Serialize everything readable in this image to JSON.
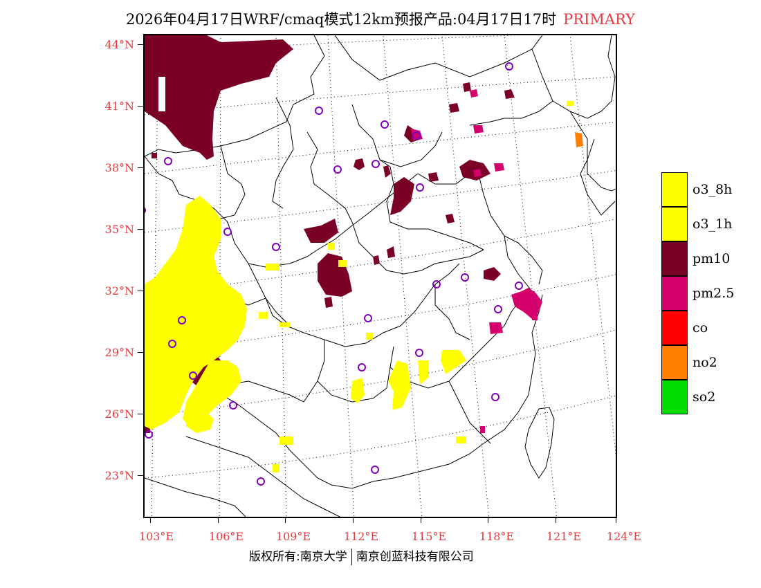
{
  "title": {
    "main": "2026年04月17日WRF/cmaq模式12km预报产品:04月17日17时",
    "tag": "PRIMARY"
  },
  "axes": {
    "lat_labels": [
      "44°N",
      "41°N",
      "38°N",
      "35°N",
      "32°N",
      "29°N",
      "26°N",
      "23°N"
    ],
    "lon_labels": [
      "103°E",
      "106°E",
      "109°E",
      "112°E",
      "115°E",
      "118°E",
      "121°E",
      "124°E"
    ]
  },
  "legend": {
    "items": [
      {
        "label": "o3_8h",
        "color": "#ffff00"
      },
      {
        "label": "o3_1h",
        "color": "#ffff00"
      },
      {
        "label": "pm10",
        "color": "#7a0025"
      },
      {
        "label": "pm2.5",
        "color": "#d4006c"
      },
      {
        "label": "co",
        "color": "#ff0000"
      },
      {
        "label": "no2",
        "color": "#ff7f00"
      },
      {
        "label": "so2",
        "color": "#00dd00"
      }
    ]
  },
  "footer": {
    "left": "版权所有:南京大学",
    "right": "南京创蓝科技有限公司"
  },
  "colors": {
    "axis_text": "#e8383d",
    "pm10": "#7a0025",
    "pm25": "#d4006c",
    "o3": "#ffff00",
    "no2": "#ff7f00",
    "station": "#8000c0"
  }
}
